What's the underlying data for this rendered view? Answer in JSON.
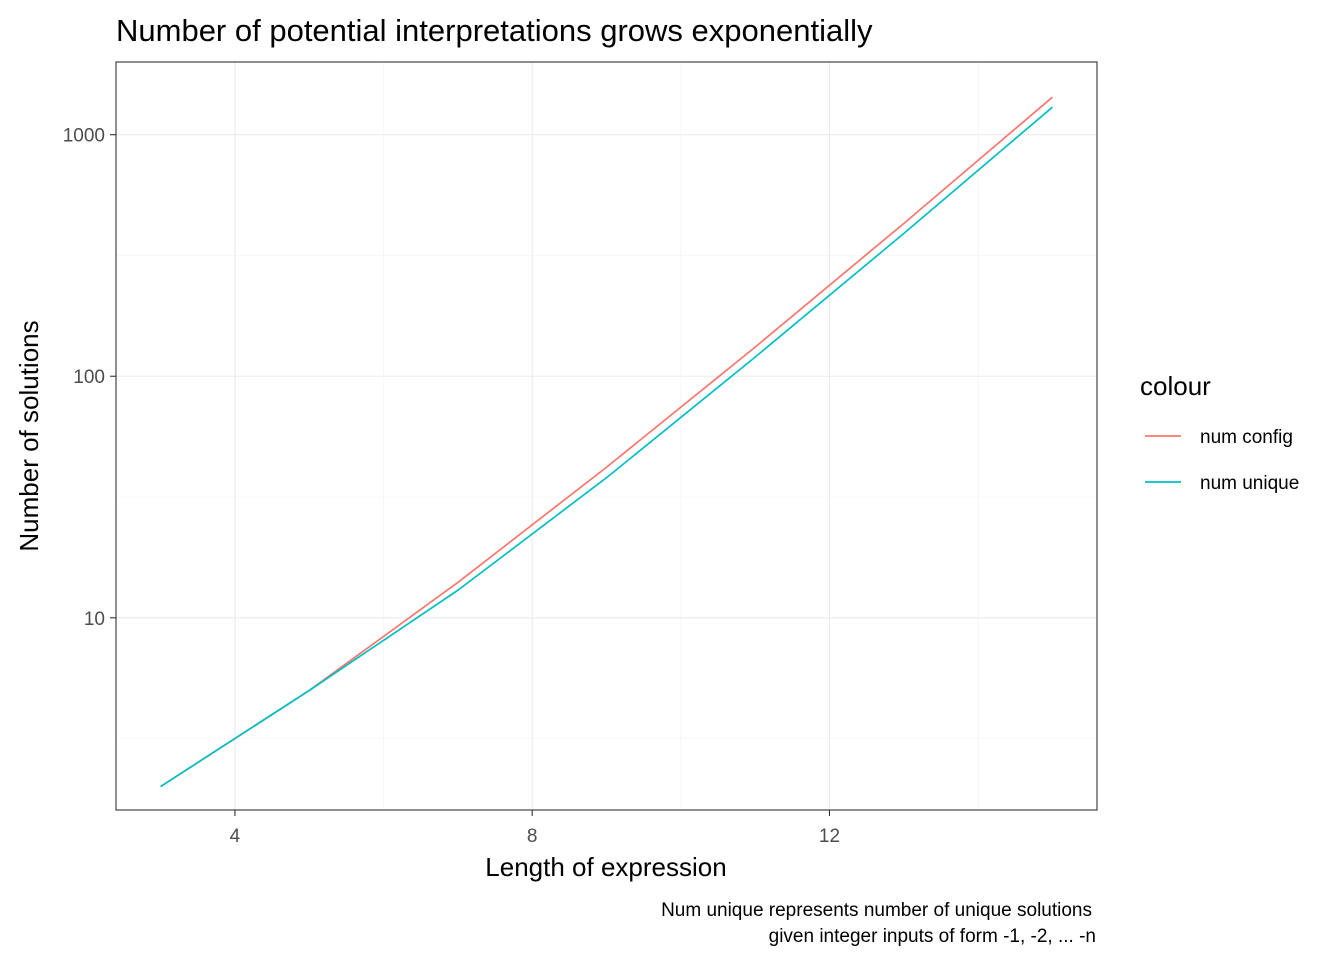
{
  "chart_data": {
    "type": "line",
    "title": "Number of potential interpretations grows exponentially",
    "xlabel": "Length of expression",
    "ylabel": "Number of solutions",
    "caption_lines": [
      "Num unique represents number of unique solutions",
      "given integer inputs of form -1, -2, ... -n"
    ],
    "x": [
      3,
      5,
      7,
      9,
      11,
      13,
      15
    ],
    "x_ticks": [
      4,
      8,
      12
    ],
    "x_tick_labels": [
      "4",
      "8",
      "12"
    ],
    "xlim": [
      2.4,
      15.6
    ],
    "y_scale": "log10",
    "y_ticks": [
      10,
      100,
      1000
    ],
    "y_tick_labels": [
      "10",
      "100",
      "1000"
    ],
    "ylim": [
      1.6,
      2000
    ],
    "grid": true,
    "legend": {
      "title": "colour",
      "position": "right"
    },
    "series": [
      {
        "name": "num config",
        "color": "#F8766D",
        "values": [
          2,
          5,
          14,
          42,
          132,
          429,
          1430
        ]
      },
      {
        "name": "num unique",
        "color": "#00BFC4",
        "values": [
          2,
          5,
          13,
          38,
          120,
          390,
          1300
        ]
      }
    ]
  }
}
